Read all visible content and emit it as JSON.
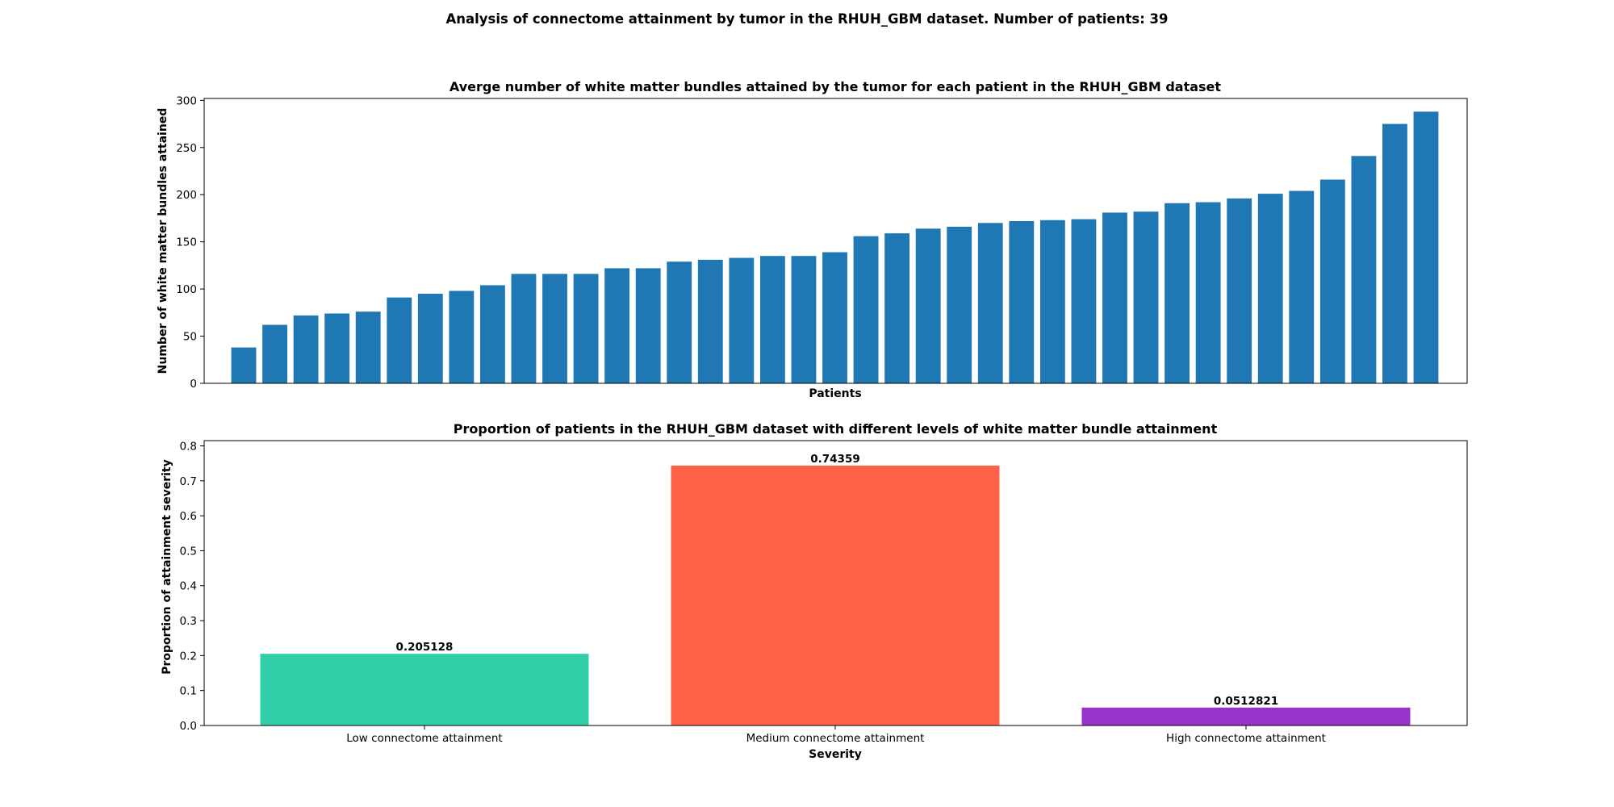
{
  "figure": {
    "title": "Analysis of connectome attainment by tumor in the RHUH_GBM dataset. Number of patients: 39"
  },
  "chart_data": [
    {
      "type": "bar",
      "title": "Averge number of white matter bundles attained by the tumor for each patient in the RHUH_GBM dataset",
      "xlabel": "Patients",
      "ylabel": "Number of white matter bundles attained",
      "ylim": [
        0,
        302
      ],
      "yticks": [
        "0",
        "50",
        "100",
        "150",
        "200",
        "250",
        "300"
      ],
      "color": "#1f77b4",
      "values": [
        38,
        62,
        72,
        74,
        76,
        91,
        95,
        98,
        104,
        116,
        116,
        116,
        122,
        122,
        129,
        131,
        133,
        135,
        135,
        139,
        156,
        159,
        164,
        166,
        170,
        172,
        173,
        174,
        181,
        182,
        191,
        192,
        196,
        201,
        204,
        216,
        241,
        275,
        288
      ],
      "grid": false
    },
    {
      "type": "bar",
      "title": "Proportion of patients in the RHUH_GBM dataset with different levels of white matter bundle attainment",
      "xlabel": "Severity",
      "ylabel": "Proportion of attainment severity",
      "ylim": [
        0,
        0.815
      ],
      "yticks": [
        "0.0",
        "0.1",
        "0.2",
        "0.3",
        "0.4",
        "0.5",
        "0.6",
        "0.7",
        "0.8"
      ],
      "categories": [
        "Low connectome attainment",
        "Medium connectome attainment",
        "High connectome attainment"
      ],
      "values": [
        0.205128,
        0.74359,
        0.0512821
      ],
      "data_labels": [
        "0.205128",
        "0.74359",
        "0.0512821"
      ],
      "colors": [
        "#33cfab",
        "#ff6347",
        "#9932cc"
      ],
      "grid": false
    }
  ]
}
